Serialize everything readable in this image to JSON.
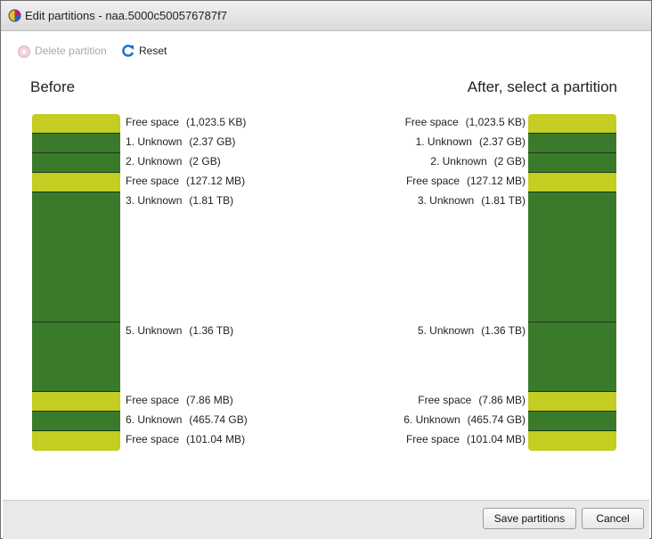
{
  "dialog": {
    "title": "Edit partitions - naa.5000c500576787f7"
  },
  "toolbar": {
    "delete": "Delete partition",
    "reset": "Reset"
  },
  "before": {
    "heading": "Before",
    "partitions": [
      {
        "name": "Free space",
        "size": "(1,023.5 KB)",
        "color": "#c3cd22"
      },
      {
        "name": "1. Unknown",
        "size": "(2.37 GB)",
        "color": "#3a7a2b"
      },
      {
        "name": "2. Unknown",
        "size": "(2 GB)",
        "color": "#3a7a2b"
      },
      {
        "name": "Free space",
        "size": "(127.12 MB)",
        "color": "#c3cd22"
      },
      {
        "name": "3. Unknown",
        "size": "(1.81 TB)",
        "color": "#3a7a2b"
      },
      {
        "name": "5. Unknown",
        "size": "(1.36 TB)",
        "color": "#3a7a2b"
      },
      {
        "name": "Free space",
        "size": "(7.86 MB)",
        "color": "#c3cd22"
      },
      {
        "name": "6. Unknown",
        "size": "(465.74 GB)",
        "color": "#3a7a2b"
      },
      {
        "name": "Free space",
        "size": "(101.04 MB)",
        "color": "#c3cd22"
      }
    ]
  },
  "after": {
    "heading": "After, select a partition",
    "partitions": [
      {
        "name": "Free space",
        "size": "(1,023.5 KB)",
        "color": "#c3cd22"
      },
      {
        "name": "1. Unknown",
        "size": "(2.37 GB)",
        "color": "#3a7a2b"
      },
      {
        "name": "2. Unknown",
        "size": "(2 GB)",
        "color": "#3a7a2b"
      },
      {
        "name": "Free space",
        "size": "(127.12 MB)",
        "color": "#c3cd22"
      },
      {
        "name": "3. Unknown",
        "size": "(1.81 TB)",
        "color": "#3a7a2b"
      },
      {
        "name": "5. Unknown",
        "size": "(1.36 TB)",
        "color": "#3a7a2b"
      },
      {
        "name": "Free space",
        "size": "(7.86 MB)",
        "color": "#c3cd22"
      },
      {
        "name": "6. Unknown",
        "size": "(465.74 GB)",
        "color": "#3a7a2b"
      },
      {
        "name": "Free space",
        "size": "(101.04 MB)",
        "color": "#c3cd22"
      }
    ]
  },
  "buttons": {
    "save": "Save partitions",
    "cancel": "Cancel"
  }
}
